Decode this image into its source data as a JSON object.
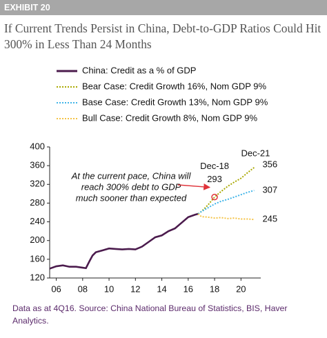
{
  "exhibit": "EXHIBIT 20",
  "chart_data": {
    "type": "line",
    "title": "If Current Trends Persist in China, Debt-to-GDP Ratios Could Hit 300% in Less Than 24 Months",
    "xlim": [
      2005.5,
      2021.5
    ],
    "xticks": [
      {
        "value": 2006,
        "label": "06"
      },
      {
        "value": 2008,
        "label": "08"
      },
      {
        "value": 2010,
        "label": "10"
      },
      {
        "value": 2012,
        "label": "12"
      },
      {
        "value": 2014,
        "label": "14"
      },
      {
        "value": 2016,
        "label": "16"
      },
      {
        "value": 2018,
        "label": "18"
      },
      {
        "value": 2020,
        "label": "20"
      }
    ],
    "ylim": [
      120,
      400
    ],
    "yticks": [
      120,
      160,
      200,
      240,
      280,
      320,
      360,
      400
    ],
    "series": [
      {
        "name": "China: Credit as a % of GDP",
        "color": "#4b1b4d",
        "style": "solid",
        "x": [
          2005.5,
          2006,
          2006.5,
          2007,
          2007.5,
          2008,
          2008.25,
          2008.5,
          2008.75,
          2009,
          2009.5,
          2010,
          2010.5,
          2011,
          2011.5,
          2012,
          2012.5,
          2013,
          2013.5,
          2014,
          2014.5,
          2015,
          2015.5,
          2016,
          2016.5,
          2016.75
        ],
        "values": [
          140,
          145,
          147,
          144,
          144,
          142,
          141,
          155,
          168,
          175,
          179,
          183,
          182,
          181,
          182,
          181,
          187,
          197,
          207,
          211,
          220,
          226,
          238,
          250,
          255,
          257
        ]
      },
      {
        "name": "Bear Case: Credit Growth 16%, Nom GDP 9%",
        "color": "#a9a800",
        "style": "dotted",
        "x": [
          2016.75,
          2017,
          2017.5,
          2018,
          2018.5,
          2019,
          2019.5,
          2020,
          2020.5,
          2021
        ],
        "values": [
          257,
          262,
          276,
          293,
          305,
          316,
          325,
          333,
          345,
          356
        ]
      },
      {
        "name": "Base Case: Credit Growth 13%, Nom GDP 9%",
        "color": "#3fb4e8",
        "style": "dotted",
        "x": [
          2016.75,
          2017,
          2017.5,
          2018,
          2018.5,
          2019,
          2019.5,
          2020,
          2020.5,
          2021
        ],
        "values": [
          257,
          262,
          270,
          278,
          284,
          288,
          293,
          298,
          303,
          307
        ]
      },
      {
        "name": "Bull Case: Credit Growth 8%, Nom GDP 9%",
        "color": "#f4c243",
        "style": "dotted",
        "x": [
          2016.75,
          2017,
          2017.5,
          2018,
          2018.5,
          2019,
          2019.5,
          2020,
          2020.5,
          2021
        ],
        "values": [
          257,
          251,
          250,
          248,
          249,
          247,
          248,
          246,
          246,
          245
        ]
      }
    ],
    "annotations": [
      {
        "text": "Dec-18"
      },
      {
        "text": "Dec-21"
      },
      {
        "text": [
          "At the current pace, China will",
          "reach 300% debt to GDP",
          "much sooner than expected"
        ]
      }
    ],
    "footnote": "Data as at 4Q16. Source: China National Bureau of Statistics, BIS, Haver Analytics."
  }
}
